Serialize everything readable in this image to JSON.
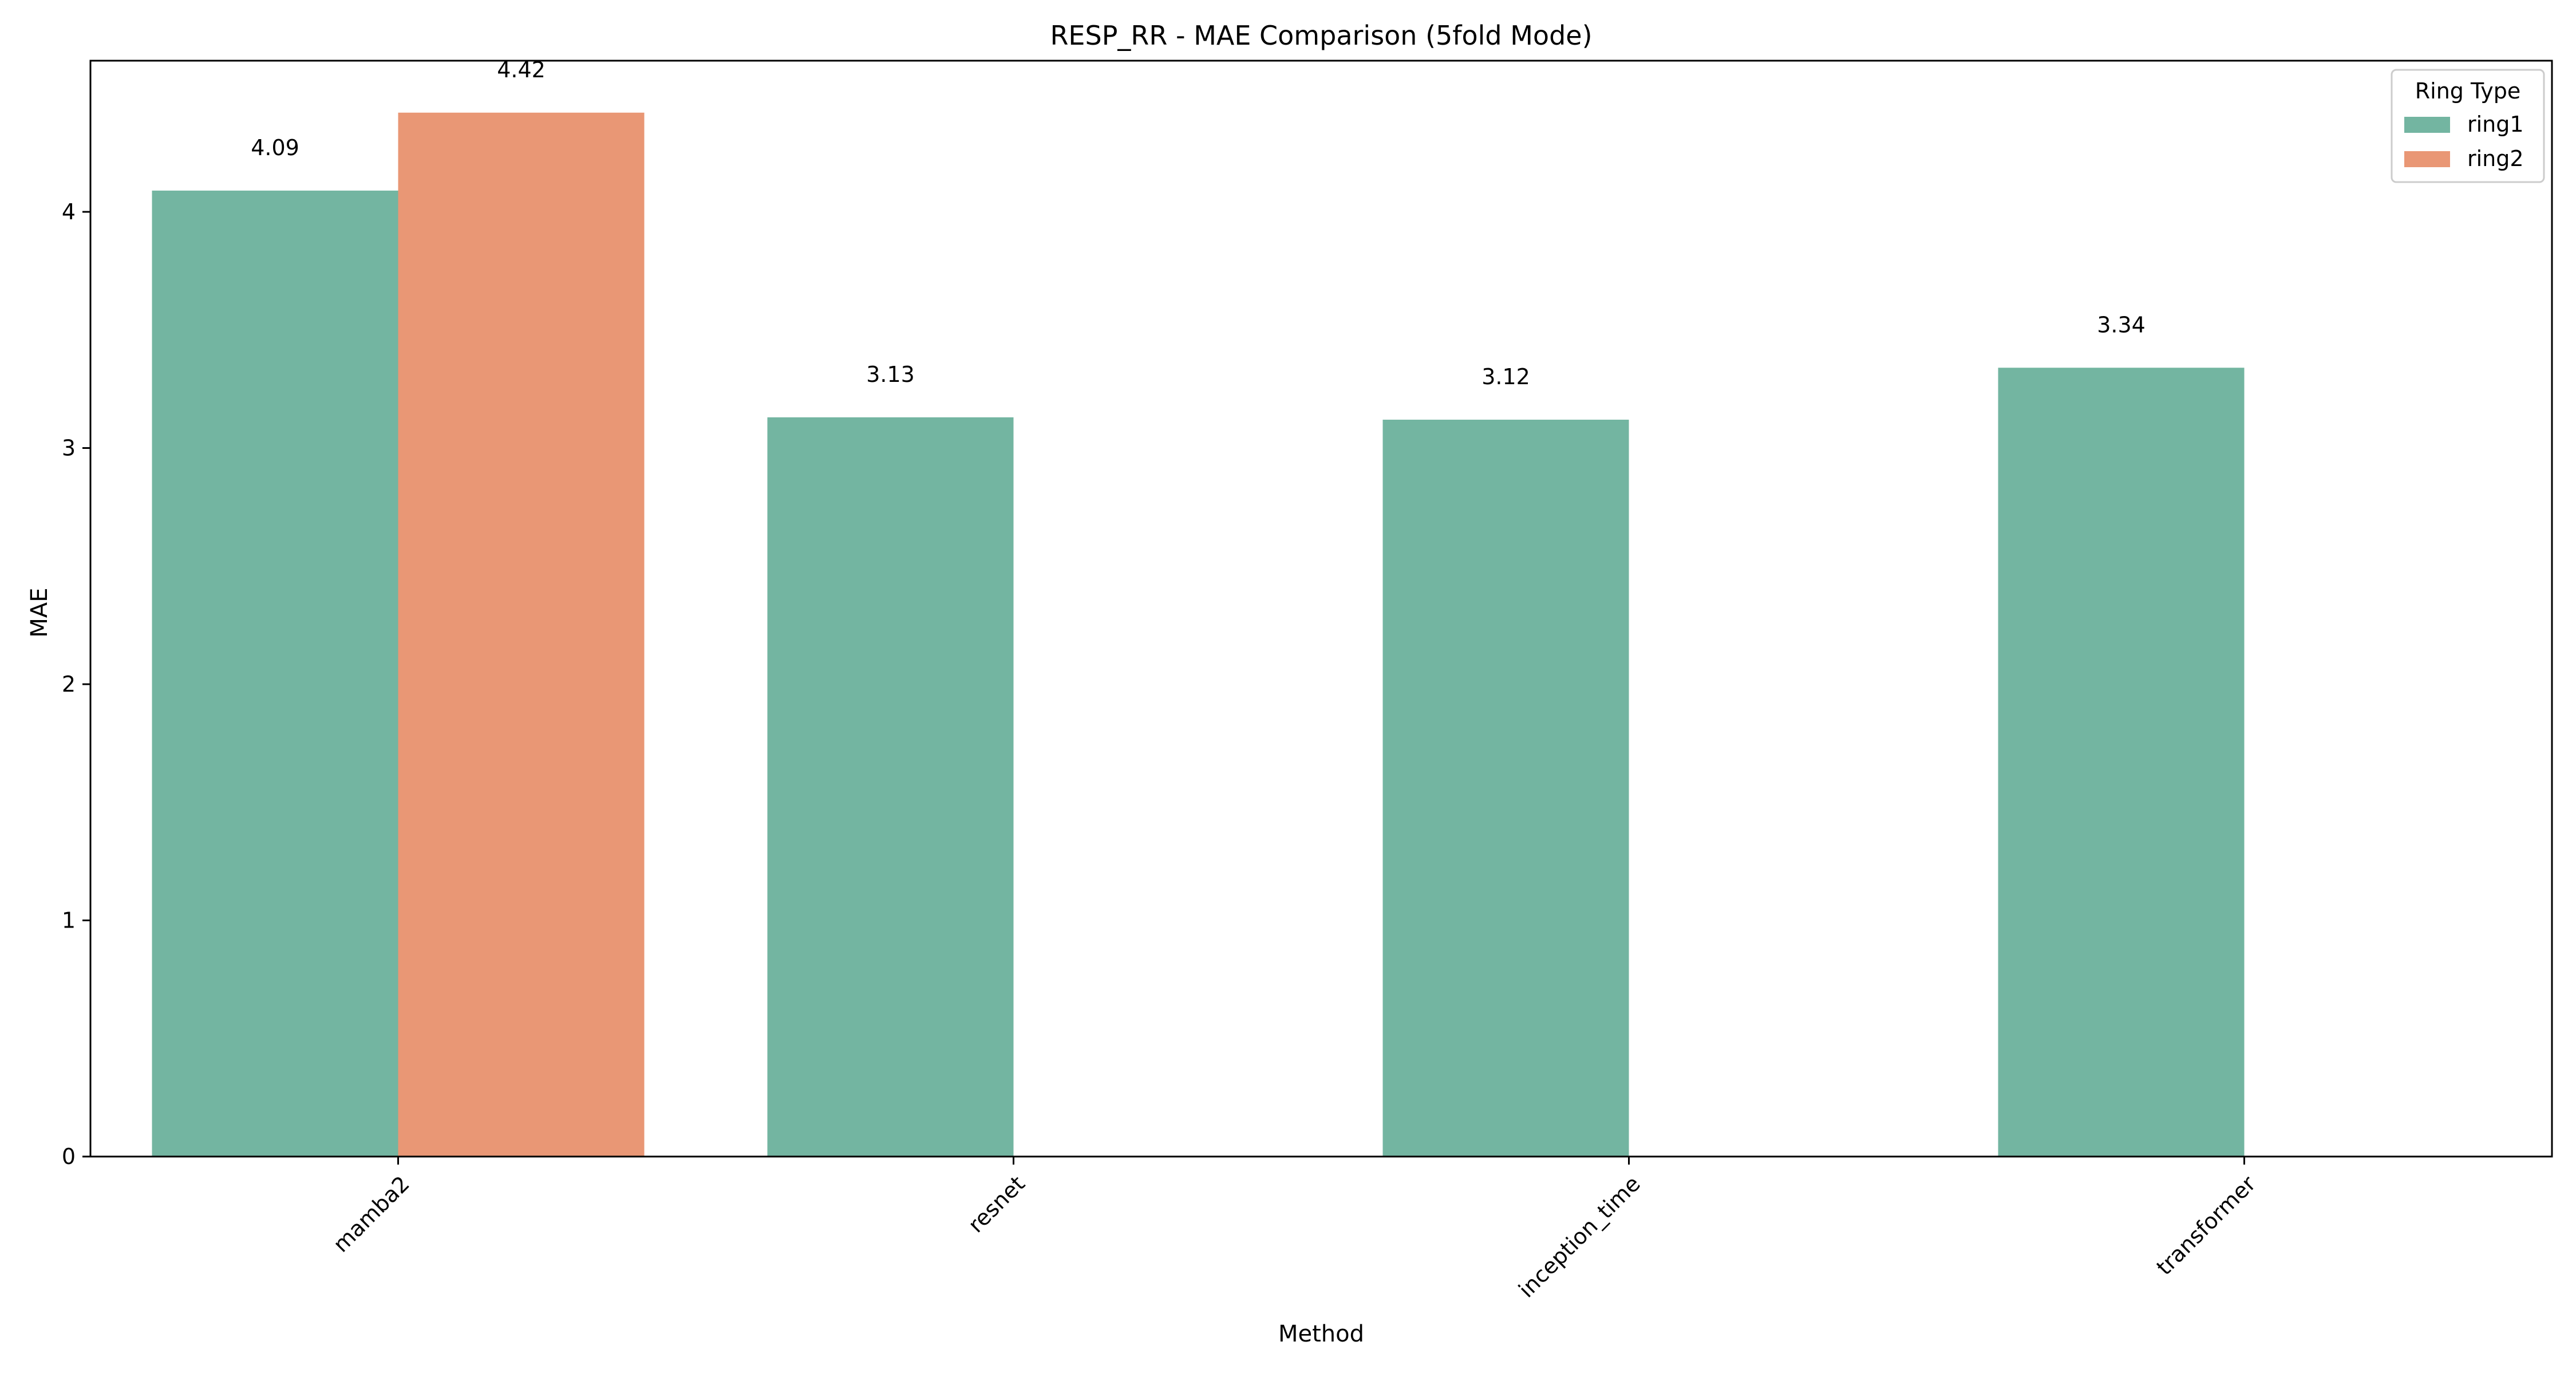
{
  "chart_data": {
    "type": "bar",
    "title": "RESP_RR - MAE Comparison (5fold Mode)",
    "xlabel": "Method",
    "ylabel": "MAE",
    "categories": [
      "mamba2",
      "resnet",
      "inception_time",
      "transformer"
    ],
    "series": [
      {
        "name": "ring1",
        "color": "#73b5a1",
        "values": [
          4.09,
          3.13,
          3.12,
          3.34
        ]
      },
      {
        "name": "ring2",
        "color": "#e99775",
        "values": [
          4.42,
          null,
          null,
          null
        ]
      }
    ],
    "data_labels": [
      {
        "series": 0,
        "category": 0,
        "text": "4.09"
      },
      {
        "series": 1,
        "category": 0,
        "text": "4.42"
      },
      {
        "series": 0,
        "category": 1,
        "text": "3.13"
      },
      {
        "series": 0,
        "category": 2,
        "text": "3.12"
      },
      {
        "series": 0,
        "category": 3,
        "text": "3.34"
      }
    ],
    "ylim": [
      0,
      4.64
    ],
    "yticks": [
      0,
      1,
      2,
      3,
      4
    ],
    "grid": false,
    "legend": {
      "title": "Ring Type",
      "position": "top-right"
    }
  }
}
